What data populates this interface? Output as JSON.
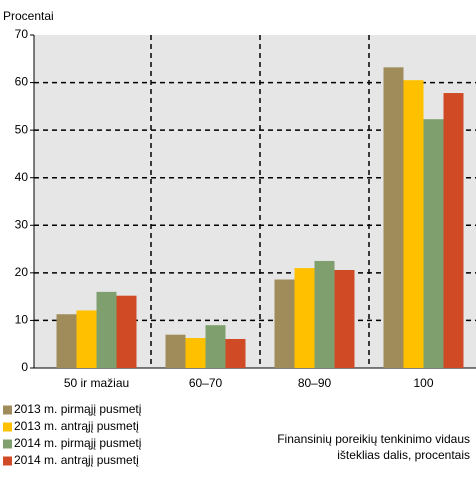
{
  "chart_data": {
    "type": "bar",
    "y_axis_label": "Procentai",
    "categories": [
      "50 ir mažiau",
      "60–70",
      "80–90",
      "100"
    ],
    "series": [
      {
        "name": "2013 m. pirmąjį pusmetį",
        "color": "#a08c5a",
        "values": [
          11.3,
          7,
          18.6,
          63.2
        ]
      },
      {
        "name": "2013 m. antrąjį pusmetį",
        "color": "#ffc000",
        "values": [
          12.1,
          6.3,
          21,
          60.5
        ]
      },
      {
        "name": "2014 m. pirmąjį pusmetį",
        "color": "#7fa06e",
        "values": [
          16,
          9,
          22.5,
          52.3
        ]
      },
      {
        "name": "2014 m. antrąjį pusmetį",
        "color": "#d04a25",
        "values": [
          15.2,
          6.1,
          20.6,
          57.8
        ]
      }
    ],
    "annotation": [
      "Finansinių poreikių tenkinimo vidaus",
      "išteklias dalis, procentais"
    ],
    "ylim": [
      0,
      70
    ],
    "yticks": [
      0,
      10,
      20,
      30,
      40,
      50,
      60,
      70
    ],
    "grid": true
  }
}
